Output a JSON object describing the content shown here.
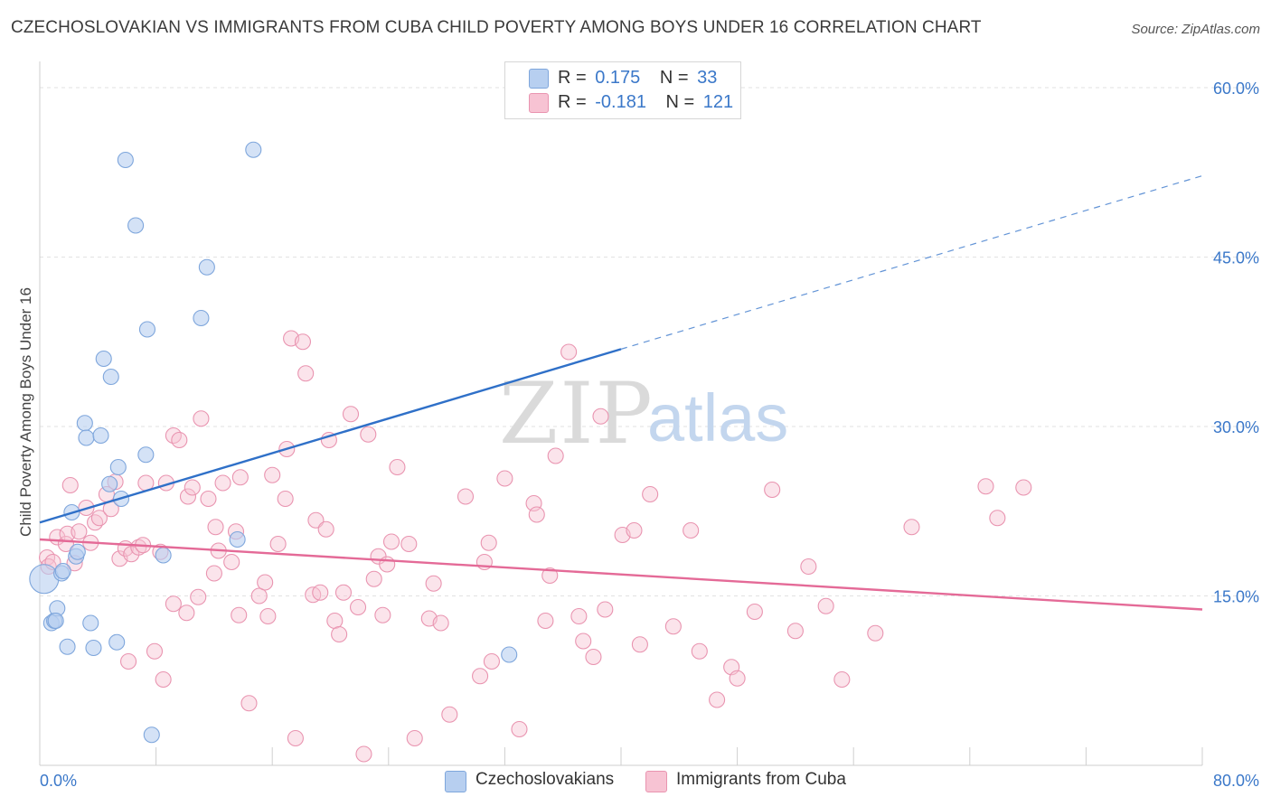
{
  "title": "CZECHOSLOVAKIAN VS IMMIGRANTS FROM CUBA CHILD POVERTY AMONG BOYS UNDER 16 CORRELATION CHART",
  "source": "Source: ZipAtlas.com",
  "watermark": {
    "zip": "ZIP",
    "atlas": "atlas"
  },
  "legend": {
    "rows": [
      {
        "r_label": "R =",
        "r_value": "0.175",
        "n_label": "N =",
        "n_value": "33"
      },
      {
        "r_label": "R =",
        "r_value": "-0.181",
        "n_label": "N =",
        "n_value": "121"
      }
    ]
  },
  "colors": {
    "blue_fill": "#b7cff0",
    "blue_stroke": "#7ea6dc",
    "blue_line": "#2f70c8",
    "pink_fill": "#f7c3d3",
    "pink_stroke": "#e994b0",
    "pink_line": "#e46a97",
    "tick_text": "#3b78c9",
    "grid": "#e2e2e2"
  },
  "chart_data": {
    "type": "scatter",
    "xlabel": "",
    "ylabel": "Child Poverty Among Boys Under 16",
    "xlim": [
      0,
      80
    ],
    "ylim": [
      0,
      60
    ],
    "x_tick_labels": [
      "0.0%",
      "80.0%"
    ],
    "y_ticks": [
      15,
      30,
      45,
      60
    ],
    "y_tick_labels": [
      "15.0%",
      "30.0%",
      "45.0%",
      "60.0%"
    ],
    "grid": true,
    "legend_position": "top-center",
    "series": [
      {
        "name": "Czechoslovakians",
        "r": 0.175,
        "n": 33,
        "trend": {
          "x0": 0,
          "y0": 21.5,
          "x_solid_end": 40,
          "x_end": 80,
          "y_end": 52.2
        },
        "points": [
          [
            0.3,
            16.5
          ],
          [
            0.8,
            12.6
          ],
          [
            1.0,
            12.8
          ],
          [
            1.2,
            13.9
          ],
          [
            1.1,
            12.8
          ],
          [
            1.5,
            17.0
          ],
          [
            1.6,
            17.2
          ],
          [
            1.9,
            10.5
          ],
          [
            2.2,
            22.4
          ],
          [
            2.5,
            18.5
          ],
          [
            2.6,
            18.9
          ],
          [
            3.1,
            30.3
          ],
          [
            3.2,
            29.0
          ],
          [
            3.5,
            12.6
          ],
          [
            3.7,
            10.4
          ],
          [
            4.2,
            29.2
          ],
          [
            4.4,
            36.0
          ],
          [
            4.8,
            24.9
          ],
          [
            4.9,
            34.4
          ],
          [
            5.3,
            10.9
          ],
          [
            5.4,
            26.4
          ],
          [
            5.6,
            23.6
          ],
          [
            5.9,
            53.6
          ],
          [
            6.6,
            47.8
          ],
          [
            7.3,
            27.5
          ],
          [
            7.4,
            38.6
          ],
          [
            7.7,
            2.7
          ],
          [
            8.5,
            18.6
          ],
          [
            11.1,
            39.6
          ],
          [
            11.5,
            44.1
          ],
          [
            13.6,
            20.0
          ],
          [
            14.7,
            54.5
          ],
          [
            32.3,
            9.8
          ]
        ]
      },
      {
        "name": "Immigrants from Cuba",
        "r": -0.181,
        "n": 121,
        "trend": {
          "x0": 0,
          "y0": 20.0,
          "x_end": 80,
          "y_end": 13.8
        },
        "points": [
          [
            0.5,
            18.4
          ],
          [
            0.6,
            17.6
          ],
          [
            0.9,
            18.0
          ],
          [
            1.2,
            20.2
          ],
          [
            1.8,
            19.6
          ],
          [
            1.9,
            20.5
          ],
          [
            2.1,
            24.8
          ],
          [
            2.4,
            17.9
          ],
          [
            2.7,
            20.7
          ],
          [
            3.2,
            22.8
          ],
          [
            3.5,
            19.7
          ],
          [
            3.8,
            21.5
          ],
          [
            4.1,
            21.9
          ],
          [
            4.6,
            24.0
          ],
          [
            4.9,
            22.7
          ],
          [
            5.2,
            25.1
          ],
          [
            5.5,
            18.3
          ],
          [
            5.9,
            19.2
          ],
          [
            6.1,
            9.2
          ],
          [
            6.3,
            18.7
          ],
          [
            6.8,
            19.3
          ],
          [
            7.1,
            19.5
          ],
          [
            7.3,
            25.0
          ],
          [
            7.9,
            10.1
          ],
          [
            8.3,
            18.9
          ],
          [
            8.5,
            7.6
          ],
          [
            8.7,
            25.0
          ],
          [
            9.2,
            29.2
          ],
          [
            9.2,
            14.3
          ],
          [
            9.6,
            28.8
          ],
          [
            10.1,
            13.5
          ],
          [
            10.2,
            23.8
          ],
          [
            10.5,
            24.6
          ],
          [
            10.9,
            14.9
          ],
          [
            11.1,
            30.7
          ],
          [
            11.6,
            23.6
          ],
          [
            12.0,
            17.0
          ],
          [
            12.1,
            21.1
          ],
          [
            12.3,
            19.0
          ],
          [
            12.6,
            25.0
          ],
          [
            13.2,
            18.0
          ],
          [
            13.5,
            20.7
          ],
          [
            13.7,
            13.3
          ],
          [
            13.8,
            25.5
          ],
          [
            14.4,
            5.5
          ],
          [
            15.1,
            15.0
          ],
          [
            15.5,
            16.2
          ],
          [
            15.7,
            13.2
          ],
          [
            16.0,
            25.7
          ],
          [
            16.4,
            19.6
          ],
          [
            16.9,
            23.6
          ],
          [
            17.0,
            28.0
          ],
          [
            17.3,
            37.8
          ],
          [
            17.6,
            2.4
          ],
          [
            18.1,
            37.5
          ],
          [
            18.3,
            34.7
          ],
          [
            18.8,
            15.1
          ],
          [
            19.0,
            21.7
          ],
          [
            19.3,
            15.3
          ],
          [
            19.7,
            20.9
          ],
          [
            19.9,
            28.8
          ],
          [
            20.3,
            12.8
          ],
          [
            20.6,
            11.6
          ],
          [
            20.9,
            15.3
          ],
          [
            21.4,
            31.1
          ],
          [
            21.9,
            14.0
          ],
          [
            22.3,
            1.0
          ],
          [
            22.6,
            29.3
          ],
          [
            23.0,
            16.5
          ],
          [
            23.3,
            18.5
          ],
          [
            23.6,
            13.3
          ],
          [
            23.9,
            17.8
          ],
          [
            24.2,
            19.8
          ],
          [
            24.6,
            26.4
          ],
          [
            25.4,
            19.6
          ],
          [
            25.8,
            2.4
          ],
          [
            26.8,
            13.0
          ],
          [
            27.1,
            16.1
          ],
          [
            27.6,
            12.6
          ],
          [
            28.2,
            4.5
          ],
          [
            29.3,
            23.8
          ],
          [
            30.3,
            7.9
          ],
          [
            30.6,
            18.0
          ],
          [
            30.9,
            19.7
          ],
          [
            31.1,
            9.2
          ],
          [
            32.0,
            25.4
          ],
          [
            33.0,
            3.2
          ],
          [
            34.0,
            23.2
          ],
          [
            34.2,
            22.2
          ],
          [
            34.8,
            12.8
          ],
          [
            35.1,
            16.8
          ],
          [
            35.5,
            27.4
          ],
          [
            36.4,
            36.6
          ],
          [
            37.1,
            13.2
          ],
          [
            37.4,
            11.0
          ],
          [
            38.1,
            9.6
          ],
          [
            38.6,
            30.9
          ],
          [
            38.9,
            13.8
          ],
          [
            40.1,
            20.4
          ],
          [
            40.9,
            20.8
          ],
          [
            41.3,
            10.7
          ],
          [
            42.0,
            24.0
          ],
          [
            43.6,
            12.3
          ],
          [
            44.8,
            20.8
          ],
          [
            45.4,
            10.1
          ],
          [
            46.6,
            5.8
          ],
          [
            47.6,
            8.7
          ],
          [
            48.0,
            7.7
          ],
          [
            49.2,
            13.6
          ],
          [
            50.4,
            24.4
          ],
          [
            52.0,
            11.9
          ],
          [
            52.9,
            17.6
          ],
          [
            54.1,
            14.1
          ],
          [
            55.2,
            7.6
          ],
          [
            57.5,
            11.7
          ],
          [
            60.0,
            21.1
          ],
          [
            65.1,
            24.7
          ],
          [
            65.9,
            21.9
          ],
          [
            67.7,
            24.6
          ]
        ]
      }
    ]
  },
  "bottom_legend": [
    {
      "label": "Czechoslovakians"
    },
    {
      "label": "Immigrants from Cuba"
    }
  ]
}
